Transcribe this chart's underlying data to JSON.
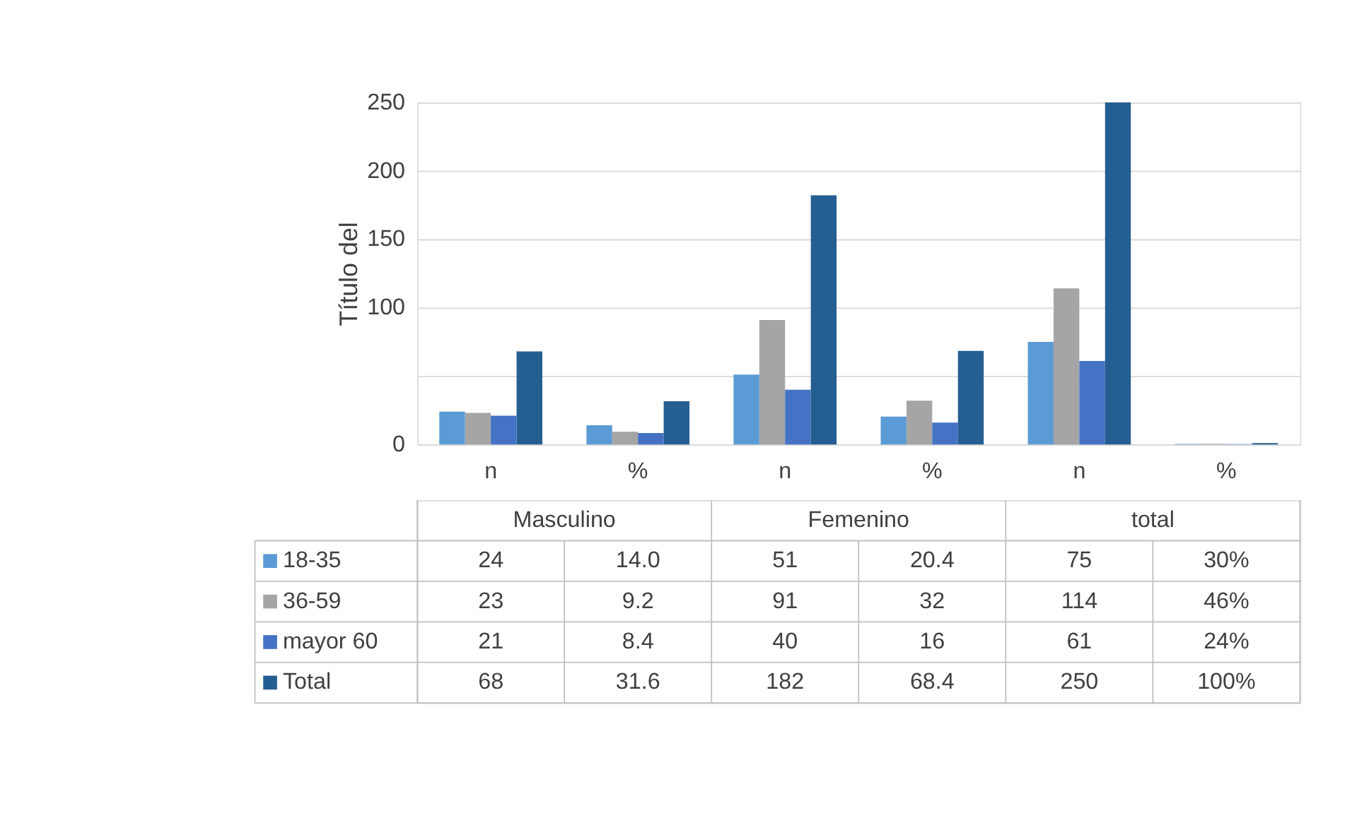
{
  "chart_data": {
    "type": "bar",
    "ylabel": "Título del",
    "categories": [
      "n",
      "%",
      "n",
      "%",
      "n",
      "%"
    ],
    "annotations": [
      "Masculino",
      "Femenino",
      "total"
    ],
    "series": [
      {
        "name": "18-35",
        "color": "#5b9bd5",
        "values": [
          24,
          14.0,
          51,
          20.4,
          75,
          0.3
        ],
        "value_labels": [
          "24",
          "14.0",
          "51",
          "20.4",
          "75",
          "30%"
        ]
      },
      {
        "name": "36-59",
        "color": "#a5a5a5",
        "values": [
          23,
          9.2,
          91,
          32,
          114,
          0.46
        ],
        "value_labels": [
          "23",
          "9.2",
          "91",
          "32",
          "114",
          "46%"
        ]
      },
      {
        "name": "mayor 60",
        "color": "#4472c4",
        "values": [
          21,
          8.4,
          40,
          16,
          61,
          0.24
        ],
        "value_labels": [
          "21",
          "8.4",
          "40",
          "16",
          "61",
          "24%"
        ]
      },
      {
        "name": "Total",
        "color": "#255e91",
        "values": [
          68,
          31.6,
          182,
          68.4,
          250,
          1.0
        ],
        "value_labels": [
          "68",
          "31.6",
          "182",
          "68.4",
          "250",
          "100%"
        ]
      }
    ],
    "ylim": [
      0,
      250
    ],
    "yticks": [
      0,
      {
        "value": 50,
        "label": null
      },
      100,
      150,
      200,
      250
    ],
    "grid": "y",
    "legend": "bottom"
  }
}
